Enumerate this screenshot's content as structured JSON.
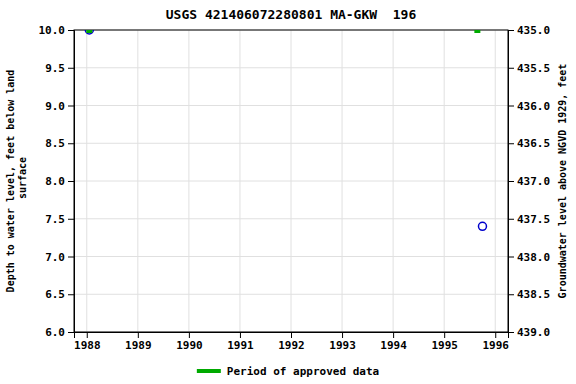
{
  "chart_data": {
    "type": "scatter",
    "title": "USGS 421406072280801 MA-GKW  196",
    "y_label": "Depth to water level, feet below land\n surface",
    "y2_label": "Groundwater level above NGVD 1929, feet",
    "xlim": [
      1987.75,
      1996.25
    ],
    "xticks": [
      1988,
      1989,
      1990,
      1991,
      1992,
      1993,
      1994,
      1995,
      1996
    ],
    "ylim": [
      6.0,
      10.0
    ],
    "yticks": [
      {
        "value": 6.0,
        "label": "6.0"
      },
      {
        "value": 6.5,
        "label": "6.5"
      },
      {
        "value": 7.0,
        "label": "7.0"
      },
      {
        "value": 7.5,
        "label": "7.5"
      },
      {
        "value": 8.0,
        "label": "8.0"
      },
      {
        "value": 8.5,
        "label": "8.5"
      },
      {
        "value": 9.0,
        "label": "9.0"
      },
      {
        "value": 9.5,
        "label": "9.5"
      },
      {
        "value": 10.0,
        "label": "10.0"
      }
    ],
    "y2lim": [
      439.0,
      435.0
    ],
    "y2ticks": [
      {
        "value": 439.0,
        "label": "439.0"
      },
      {
        "value": 438.5,
        "label": "438.5"
      },
      {
        "value": 438.0,
        "label": "438.0"
      },
      {
        "value": 437.5,
        "label": "437.5"
      },
      {
        "value": 437.0,
        "label": "437.0"
      },
      {
        "value": 436.5,
        "label": "436.5"
      },
      {
        "value": 436.0,
        "label": "436.0"
      },
      {
        "value": 435.5,
        "label": "435.5"
      },
      {
        "value": 435.0,
        "label": "435.0"
      }
    ],
    "grid": true,
    "legend": "bottom",
    "series": [
      {
        "color": "#0000cc",
        "marker": "circle-open",
        "x": [
          1988.05,
          1995.75
        ],
        "values": [
          10.0,
          7.4
        ]
      },
      {
        "name": "Period of approved data",
        "color": "#00aa00",
        "marker": "square",
        "x": [
          1988.05,
          1995.65
        ],
        "values": [
          10.0,
          10.0
        ]
      }
    ]
  }
}
